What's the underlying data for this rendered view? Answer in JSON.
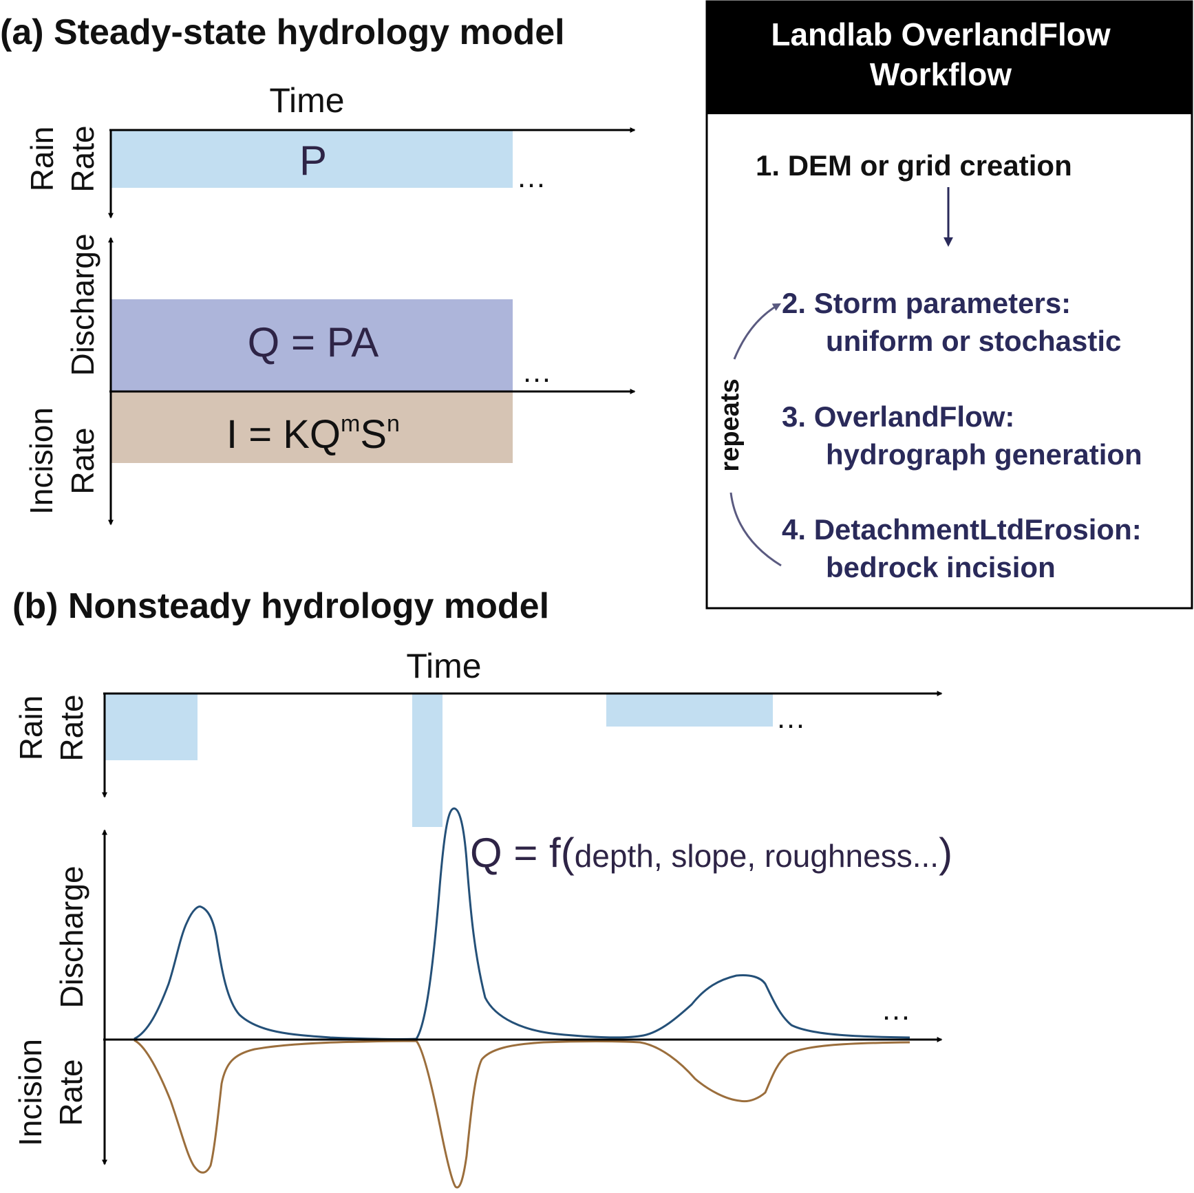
{
  "panel_a": {
    "title": "(a) Steady-state hydrology model",
    "time_label": "Time",
    "rain_label_line1": "Rain",
    "rain_label_line2": "Rate",
    "rain_symbol": "P",
    "discharge_label": "Discharge",
    "discharge_eq": "Q = PA",
    "incision_label_line1": "Incision",
    "incision_label_line2": "Rate",
    "incision_eq_I": "I = KQ",
    "incision_eq_m": "m",
    "incision_eq_S": "S",
    "incision_eq_n": "n",
    "ellipsis_rain": "…",
    "ellipsis_discharge": "…"
  },
  "panel_b": {
    "title": "(b) Nonsteady hydrology model",
    "time_label": "Time",
    "rain_label_line1": "Rain",
    "rain_label_line2": "Rate",
    "discharge_label": "Discharge",
    "incision_label_line1": "Incision",
    "incision_label_line2": "Rate",
    "discharge_eq_main": "Q = f(",
    "discharge_eq_args": "depth, slope, roughness...",
    "discharge_eq_close": ")",
    "ellipsis_rain": "…",
    "ellipsis_discharge": "…"
  },
  "workflow": {
    "header_line1": "Landlab OverlandFlow",
    "header_line2": "Workflow",
    "step1": "1. DEM or grid creation",
    "step2_line1": "2. Storm parameters:",
    "step2_line2": "uniform or stochastic",
    "step3_line1": "3. OverlandFlow:",
    "step3_line2": "hydrograph generation",
    "step4_line1": "4. DetachmentLtdErosion:",
    "step4_line2": "bedrock incision",
    "repeats_label": "repeats"
  },
  "colors": {
    "rain": "#c2def1",
    "discharge_fill": "#adb5da",
    "incision_fill": "#d6c4b4",
    "hydrograph": "#245078",
    "incision_curve": "#9b6e3c",
    "navy_text": "#2a2a5a",
    "header_bg": "#000000"
  }
}
